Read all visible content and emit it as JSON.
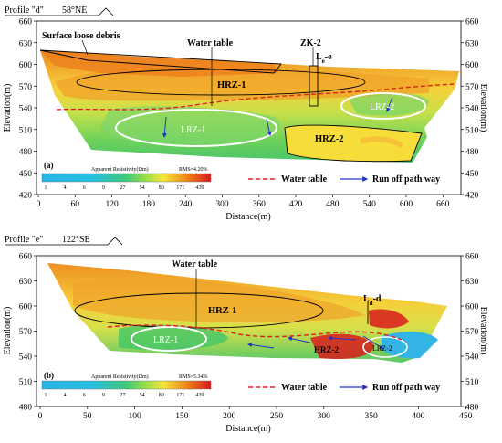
{
  "panels": [
    {
      "panel_label": "(a)",
      "profile_title": "Profile \"d\"",
      "orientation": "58°NE",
      "y_axis_label": "Elevation(m)",
      "x_axis_label": "Distance(m)",
      "y_ticks": [
        "660",
        "630",
        "600",
        "570",
        "540",
        "510",
        "480",
        "450",
        "420"
      ],
      "x_ticks": [
        "0",
        "60",
        "120",
        "180",
        "240",
        "300",
        "360",
        "420",
        "480",
        "540",
        "600",
        "660"
      ],
      "annotations": {
        "debris": "Surface loose debris",
        "water_table": "Water table",
        "borehole": "ZK-2",
        "line_cross": "L",
        "line_cross_sub": "e",
        "hrz1": "HRZ-1",
        "hrz2": "HRZ-2",
        "lrz1": "LRZ-1",
        "lrz2": "LRZ-2"
      },
      "colorbar": {
        "title": "Apparent Resistivity(Ωm)",
        "rms": "RMS=4.20%",
        "values": [
          "1",
          "4",
          "6",
          "9",
          "27",
          "54",
          "80",
          "171",
          "439"
        ]
      },
      "legend": {
        "water_table": "Water table",
        "runoff": "Run off path way"
      }
    },
    {
      "panel_label": "(b)",
      "profile_title": "Profile \"e\"",
      "orientation": "122°SE",
      "y_axis_label": "Elevation(m)",
      "x_axis_label": "Distance(m)",
      "y_ticks": [
        "660",
        "630",
        "600",
        "570",
        "540",
        "510",
        "480"
      ],
      "x_ticks": [
        "0",
        "50",
        "100",
        "150",
        "200",
        "250",
        "300",
        "350",
        "400",
        "450"
      ],
      "annotations": {
        "water_table": "Water table",
        "line_cross": "L",
        "line_cross_sub": "d",
        "hrz1": "HRZ-1",
        "hrz2": "HRZ-2",
        "lrz1": "LRZ-1",
        "lrz2": "LRZ-2"
      },
      "colorbar": {
        "title": "Apparent Resistivity(Ωm)",
        "rms": "RMS=5.34%",
        "values": [
          "1",
          "4",
          "6",
          "9",
          "27",
          "54",
          "80",
          "171",
          "439"
        ]
      },
      "legend": {
        "water_table": "Water table",
        "runoff": "Run off path way"
      }
    }
  ],
  "colors": {
    "low": "#2aa8e0",
    "mid_low": "#3ec96a",
    "mid": "#b8e04a",
    "mid_high": "#f5e63c",
    "high": "#f08a1c",
    "very_high": "#d81c1c",
    "water_table": "#e02020",
    "runoff": "#2233cc"
  }
}
